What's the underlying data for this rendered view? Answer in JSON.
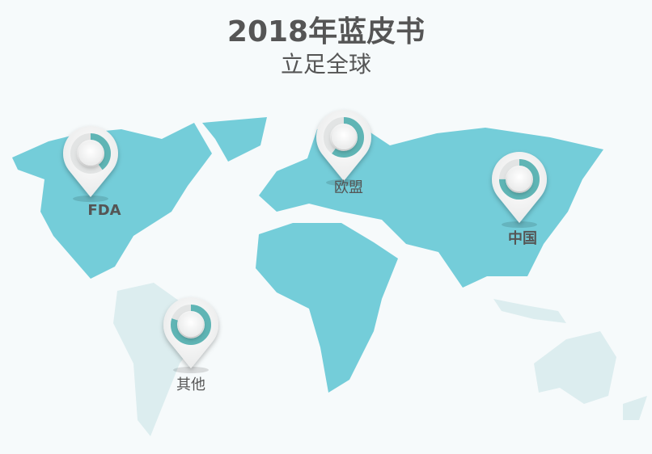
{
  "header": {
    "title": "2018年蓝皮书",
    "subtitle": "立足全球"
  },
  "colors": {
    "land_primary": "#74cdd9",
    "land_secondary": "#dcedef",
    "ring": "#5fb5b5",
    "ring_track": "#e2e4e4",
    "background": "#f6fafb"
  },
  "markers": [
    {
      "label": "FDA",
      "progress": 0.4
    },
    {
      "label": "欧盟",
      "progress": 0.6
    },
    {
      "label": "中国",
      "progress": 0.75
    },
    {
      "label": "其他",
      "progress": 0.8
    }
  ]
}
